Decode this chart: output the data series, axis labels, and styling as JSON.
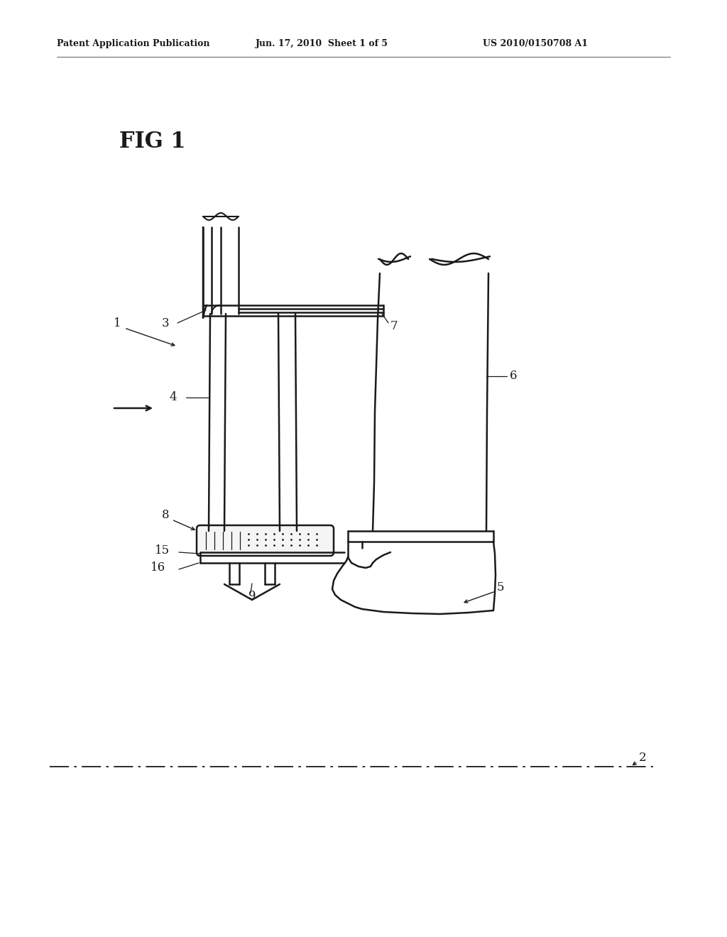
{
  "bg_color": "#ffffff",
  "line_color": "#1a1a1a",
  "header_text": "Patent Application Publication",
  "header_date": "Jun. 17, 2010  Sheet 1 of 5",
  "header_patent": "US 2010/0150708 A1",
  "fig_label": "FIG 1"
}
